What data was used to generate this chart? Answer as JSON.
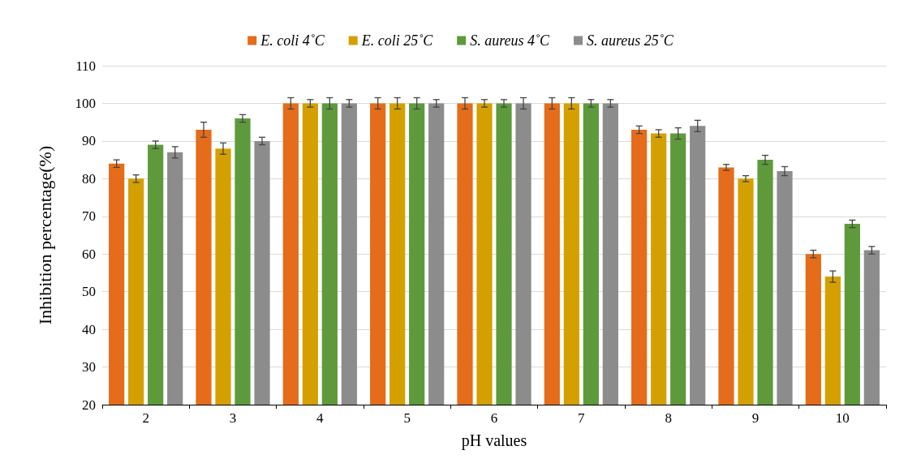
{
  "chart_data": {
    "type": "bar",
    "xlabel": "pH values",
    "ylabel": "Inhibition percentage(%)",
    "categories": [
      "2",
      "3",
      "4",
      "5",
      "6",
      "7",
      "8",
      "9",
      "10"
    ],
    "series": [
      {
        "name": "E. coli 4˚C",
        "color": "#e46c1a",
        "values": [
          84,
          93,
          100,
          100,
          100,
          100,
          93,
          83,
          60
        ],
        "errors": [
          1,
          2,
          1.5,
          1.5,
          1.5,
          1.5,
          1,
          0.8,
          1
        ]
      },
      {
        "name": "E. coli 25˚C",
        "color": "#d4a000",
        "values": [
          80,
          88,
          100,
          100,
          100,
          100,
          92,
          80,
          54
        ],
        "errors": [
          1,
          1.5,
          1,
          1.5,
          1,
          1.5,
          1,
          0.8,
          1.5
        ]
      },
      {
        "name": "S. aureus 4˚C",
        "color": "#5e9a3c",
        "values": [
          89,
          96,
          100,
          100,
          100,
          100,
          92,
          85,
          68
        ],
        "errors": [
          1,
          1,
          1.5,
          1.5,
          1,
          1,
          1.5,
          1.2,
          1
        ]
      },
      {
        "name": "S. aureus 25˚C",
        "color": "#8c8c8c",
        "values": [
          87,
          90,
          100,
          100,
          100,
          100,
          94,
          82,
          61
        ],
        "errors": [
          1.5,
          1,
          1,
          1,
          1.5,
          1,
          1.5,
          1.2,
          1
        ]
      }
    ],
    "ylim": [
      20,
      110
    ],
    "yticks": [
      20,
      30,
      40,
      50,
      60,
      70,
      80,
      90,
      100,
      110
    ],
    "grid": "y",
    "legend": "top"
  }
}
